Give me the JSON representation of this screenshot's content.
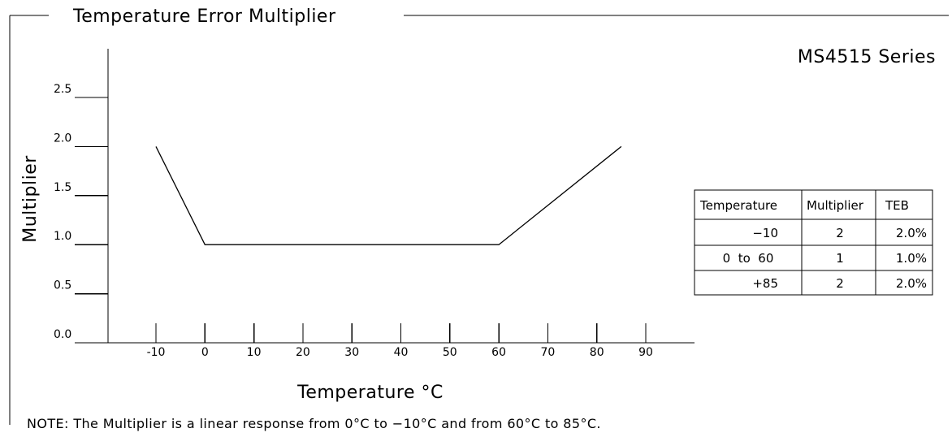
{
  "header": {
    "title": "Temperature Error Multiplier",
    "series_label": "MS4515 Series"
  },
  "note": "NOTE: The Multiplier is a linear response from 0°C to −10°C and from 60°C to 85°C.",
  "chart_data": {
    "type": "line",
    "title": "Temperature Error Multiplier",
    "subtitle": "MS4515 Series",
    "xlabel": "Temperature °C",
    "ylabel": "Multiplier",
    "x_ticks": [
      -10,
      0,
      10,
      20,
      30,
      40,
      50,
      60,
      70,
      80,
      90
    ],
    "x_tick_labels": [
      "-10",
      "0",
      "10",
      "20",
      "30",
      "40",
      "50",
      "60",
      "70",
      "80",
      "90"
    ],
    "y_ticks": [
      0.0,
      0.5,
      1.0,
      1.5,
      2.0,
      2.5
    ],
    "y_tick_labels": [
      "0.0",
      "0.5",
      "1.0",
      "1.5",
      "2.0",
      "2.5"
    ],
    "xlim": [
      -20,
      100
    ],
    "ylim": [
      0,
      3
    ],
    "grid": false,
    "series": [
      {
        "x": [
          -10,
          0,
          60,
          85
        ],
        "y": [
          2,
          1,
          1,
          2
        ]
      }
    ]
  },
  "table": {
    "headers": [
      "Temperature",
      "Multiplier",
      "TEB"
    ],
    "rows": [
      [
        "−10",
        "2",
        "2.0%"
      ],
      [
        "0  to  60",
        "1",
        "1.0%"
      ],
      [
        "+85",
        "2",
        "2.0%"
      ]
    ]
  }
}
